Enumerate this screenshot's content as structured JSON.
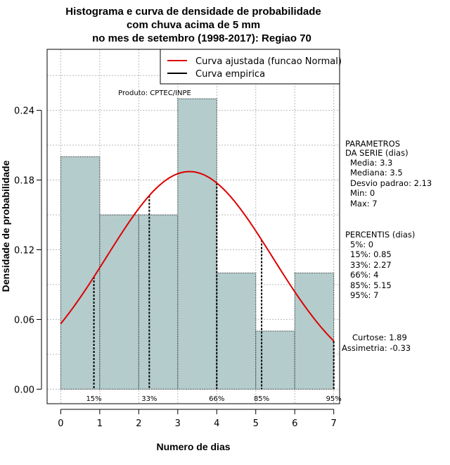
{
  "chart_data": {
    "type": "bar",
    "title_lines": [
      "Histograma e curva de densidade de probabilidade",
      "com chuva acima de 5 mm",
      "no mes de setembro (1998-2017): Regiao 70"
    ],
    "xlabel": "Numero de dias",
    "ylabel": "Densidade de probabilidade",
    "xlim": [
      -0.35,
      7.15
    ],
    "ylim": [
      -0.0125,
      0.2925
    ],
    "x_ticks": [
      0,
      1,
      2,
      3,
      4,
      5,
      6,
      7
    ],
    "y_ticks": [
      0.0,
      0.06,
      0.12,
      0.18,
      0.24
    ],
    "y_tick_labels": [
      "0.00",
      "0.06",
      "0.12",
      "0.18",
      "0.24"
    ],
    "grid": true,
    "histogram": {
      "bin_edges": [
        0,
        1,
        2,
        3,
        4,
        5,
        6,
        7
      ],
      "density": [
        0.2,
        0.15,
        0.15,
        0.25,
        0.1,
        0.05,
        0.1
      ],
      "fill_color": "#b4cccc"
    },
    "fitted_curve": {
      "label": "Curva ajustada (funcao Normal)",
      "distribution": "normal",
      "mean": 3.3,
      "sd": 2.13,
      "x_from": 0,
      "x_to": 7,
      "color": "#dd0000"
    },
    "empirical_curve": {
      "label": "Curva empirica",
      "color": "#000000"
    },
    "percentile_markers": [
      {
        "label": "15%",
        "x": 0.85
      },
      {
        "label": "33%",
        "x": 2.27
      },
      {
        "label": "66%",
        "x": 4.0
      },
      {
        "label": "85%",
        "x": 5.15
      },
      {
        "label": "95%",
        "x": 7.0
      }
    ],
    "legend_position": "top-right",
    "product_label": "Produto: CPTEC/INPE",
    "parameters": {
      "heading_lines": [
        "PARAMETROS",
        "DA SERIE (dias)"
      ],
      "items": [
        "Media: 3.3",
        "Mediana: 3.5",
        "Desvio padrao: 2.13",
        "Min: 0",
        "Max: 7"
      ]
    },
    "percentiles": {
      "heading": "PERCENTIS (dias)",
      "items": [
        "5%: 0",
        "15%: 0.85",
        "33%: 2.27",
        "66%: 4",
        "85%: 5.15",
        "95%: 7"
      ]
    },
    "shape": {
      "items": [
        "Curtose: 1.89",
        "Assimetria: -0.33"
      ]
    }
  }
}
